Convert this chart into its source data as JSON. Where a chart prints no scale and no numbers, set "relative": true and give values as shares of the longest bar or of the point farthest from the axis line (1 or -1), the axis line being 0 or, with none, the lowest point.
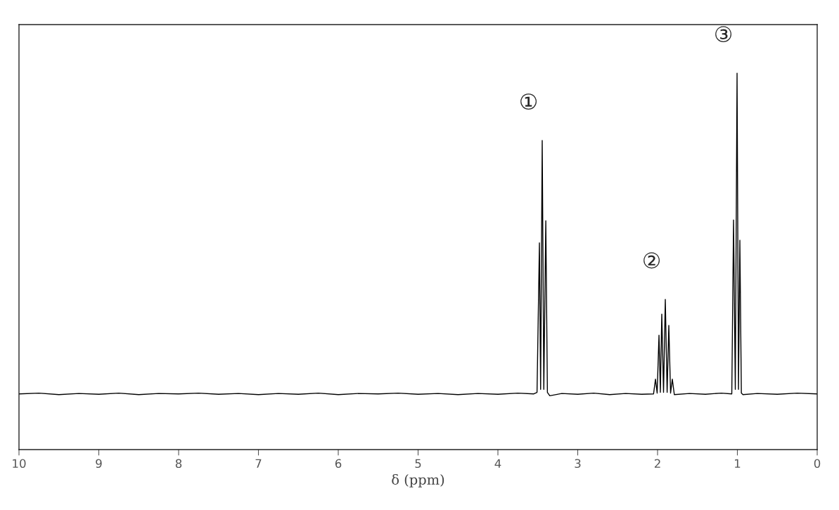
{
  "chart_data": {
    "type": "line",
    "relative": true,
    "xlabel": "δ (ppm)",
    "xlim": [
      10,
      0
    ],
    "xticks": [
      10,
      9,
      8,
      7,
      6,
      5,
      4,
      3,
      2,
      1,
      0
    ],
    "tick_labels": "x",
    "grid": false,
    "legend": false,
    "marker": "none",
    "line_style": "solid",
    "series": [
      {
        "color": "#000000",
        "x": [
          10,
          9.75,
          9.5,
          9.25,
          9,
          8.75,
          8.5,
          8.25,
          8,
          7.75,
          7.5,
          7.25,
          7,
          6.75,
          6.5,
          6.25,
          6,
          5.75,
          5.5,
          5.25,
          5,
          4.75,
          4.5,
          4.25,
          4,
          3.75,
          3.55,
          3.51,
          3.48,
          3.465,
          3.445,
          3.425,
          3.4,
          3.38,
          3.35,
          3.2,
          3,
          2.8,
          2.6,
          2.4,
          2.2,
          2.05,
          2.026,
          2.005,
          1.982,
          1.965,
          1.947,
          1.925,
          1.903,
          1.88,
          1.859,
          1.837,
          1.815,
          1.79,
          1.6,
          1.4,
          1.2,
          1.07,
          1.048,
          1.026,
          1.004,
          0.986,
          0.969,
          0.95,
          0.93,
          0.75,
          0.5,
          0.25,
          0
        ],
        "values": [
          0.148,
          0.15,
          0.146,
          0.149,
          0.147,
          0.15,
          0.146,
          0.149,
          0.148,
          0.15,
          0.147,
          0.149,
          0.146,
          0.149,
          0.147,
          0.15,
          0.146,
          0.149,
          0.148,
          0.15,
          0.147,
          0.149,
          0.146,
          0.149,
          0.147,
          0.15,
          0.148,
          0.152,
          0.549,
          0.16,
          0.821,
          0.16,
          0.608,
          0.152,
          0.143,
          0.149,
          0.147,
          0.15,
          0.146,
          0.149,
          0.147,
          0.148,
          0.187,
          0.15,
          0.304,
          0.152,
          0.36,
          0.152,
          0.399,
          0.152,
          0.33,
          0.15,
          0.187,
          0.146,
          0.149,
          0.147,
          0.15,
          0.148,
          0.61,
          0.16,
          1.0,
          0.16,
          0.556,
          0.15,
          0.146,
          0.149,
          0.147,
          0.15,
          0.148
        ]
      }
    ],
    "annotations": [
      {
        "text": "①",
        "x": 3.445,
        "y": 0.821
      },
      {
        "text": "②",
        "x": 1.903,
        "y": 0.399
      },
      {
        "text": "③",
        "x": 1.004,
        "y": 1.0
      }
    ]
  }
}
